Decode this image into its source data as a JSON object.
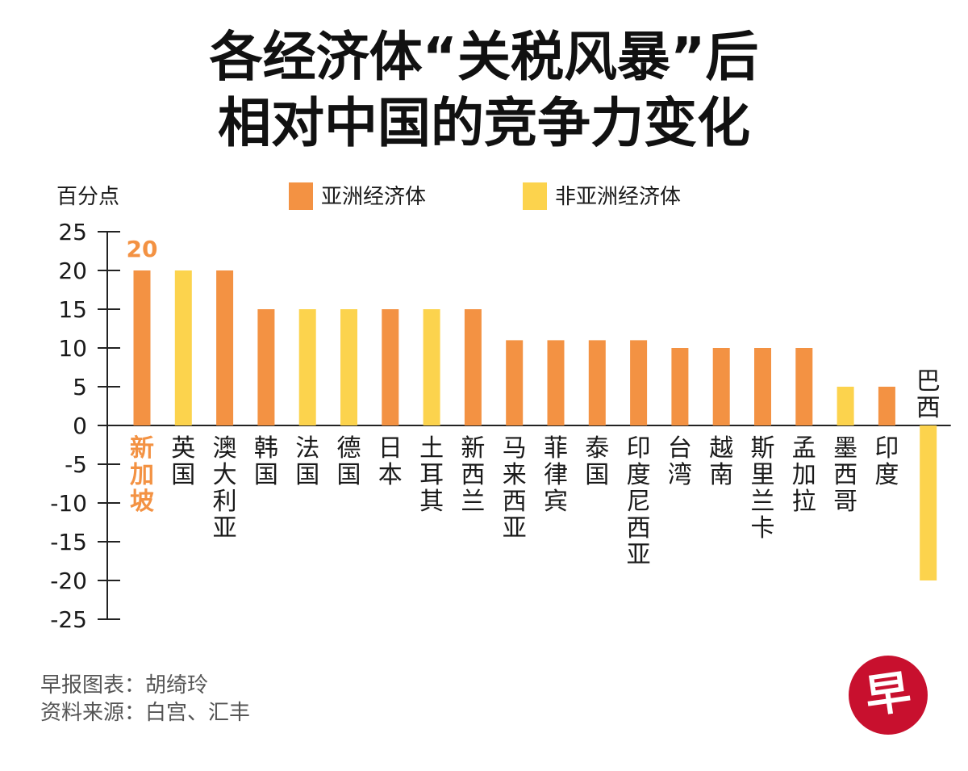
{
  "title": {
    "line1": "各经济体“关税风暴”后",
    "line2": "相对中国的竞争力变化"
  },
  "colors": {
    "asian": "#f39243",
    "non_asian": "#fcd34d",
    "highlight": "#f39243",
    "axis": "#222222",
    "text": "#1a1a1a",
    "logo": "#c8102e"
  },
  "footer": {
    "credit": "早报图表：胡绮玲",
    "source": "资料来源：白宫、汇丰"
  },
  "logo": {
    "char": "早"
  },
  "chart_data": {
    "type": "bar",
    "ylabel": "百分点",
    "ylim": [
      -25,
      25
    ],
    "yticks": [
      25,
      20,
      15,
      10,
      5,
      0,
      -5,
      -10,
      -15,
      -20,
      -25
    ],
    "legend": [
      {
        "name": "亚洲经济体",
        "group": "asian"
      },
      {
        "name": "非亚洲经济体",
        "group": "non_asian"
      }
    ],
    "highlight_label": "20",
    "categories": [
      "新加坡",
      "英国",
      "澳大利亚",
      "韩国",
      "法国",
      "德国",
      "日本",
      "土耳其",
      "新西兰",
      "马来西亚",
      "菲律宾",
      "泰国",
      "印度尼西亚",
      "台湾",
      "越南",
      "斯里兰卡",
      "孟加拉",
      "墨西哥",
      "印度",
      "巴西"
    ],
    "groups": [
      "asian",
      "non_asian",
      "asian",
      "asian",
      "non_asian",
      "non_asian",
      "asian",
      "non_asian",
      "asian",
      "asian",
      "asian",
      "asian",
      "asian",
      "asian",
      "asian",
      "asian",
      "asian",
      "non_asian",
      "asian",
      "non_asian"
    ],
    "values": [
      20,
      20,
      20,
      15,
      15,
      15,
      15,
      15,
      15,
      11,
      11,
      11,
      11,
      10,
      10,
      10,
      10,
      5,
      5,
      -20
    ]
  }
}
